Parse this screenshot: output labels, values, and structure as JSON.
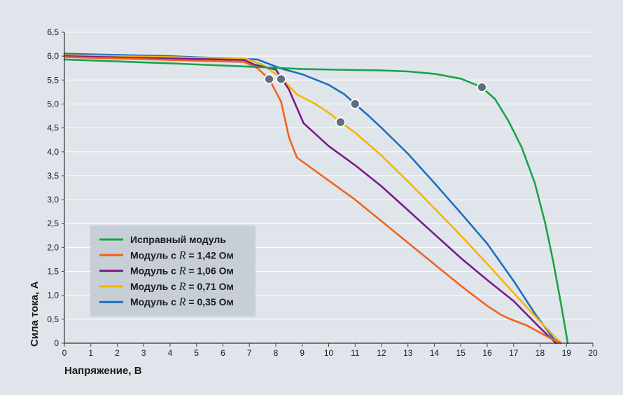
{
  "chart_data": {
    "type": "line",
    "xlabel": "Напряжение, В",
    "ylabel": "Сила тока, А",
    "xlim": [
      0,
      20
    ],
    "ylim": [
      0,
      6.5
    ],
    "x_ticks": [
      "0",
      "1",
      "2",
      "3",
      "4",
      "5",
      "6",
      "7",
      "8",
      "9",
      "10",
      "11",
      "12",
      "13",
      "14",
      "15",
      "16",
      "17",
      "18",
      "19",
      "20"
    ],
    "y_ticks": [
      "0",
      "0,5",
      "1,0",
      "1,5",
      "2,0",
      "2,5",
      "3,0",
      "3,5",
      "4,0",
      "4,5",
      "5,0",
      "5,5",
      "6,0",
      "6,5"
    ],
    "grid": "horizontal",
    "legend_position": "bottom-left",
    "legend": [
      {
        "prefix": "Исправный модуль",
        "r": "",
        "suffix": "",
        "color": "#1aa34a"
      },
      {
        "prefix": "Модуль с ",
        "r": "R",
        "suffix": " = 1,42 Ом",
        "color": "#f0641e"
      },
      {
        "prefix": "Модуль с ",
        "r": "R",
        "suffix": " = 1,06 Ом",
        "color": "#7a1a8c"
      },
      {
        "prefix": "Модуль с ",
        "r": "R",
        "suffix": " = 0,71 Ом",
        "color": "#f7b500"
      },
      {
        "prefix": "Модуль с ",
        "r": "R",
        "suffix": " = 0,35 Ом",
        "color": "#1b6fc2"
      }
    ],
    "series": [
      {
        "name": "Исправный модуль",
        "color": "#1aa34a",
        "points": [
          [
            0,
            5.93
          ],
          [
            4,
            5.85
          ],
          [
            7,
            5.78
          ],
          [
            9,
            5.73
          ],
          [
            11,
            5.71
          ],
          [
            12,
            5.7
          ],
          [
            13,
            5.68
          ],
          [
            14,
            5.63
          ],
          [
            15,
            5.53
          ],
          [
            15.8,
            5.35
          ],
          [
            16.3,
            5.1
          ],
          [
            16.8,
            4.65
          ],
          [
            17.3,
            4.1
          ],
          [
            17.8,
            3.35
          ],
          [
            18.2,
            2.5
          ],
          [
            18.5,
            1.7
          ],
          [
            18.8,
            0.8
          ],
          [
            19.05,
            0
          ]
        ]
      },
      {
        "name": "Модуль с R = 1,42 Ом",
        "color": "#f0641e",
        "points": [
          [
            0,
            5.98
          ],
          [
            4,
            5.92
          ],
          [
            6.8,
            5.88
          ],
          [
            7.3,
            5.75
          ],
          [
            7.75,
            5.52
          ],
          [
            8.2,
            5.05
          ],
          [
            8.5,
            4.3
          ],
          [
            8.8,
            3.88
          ],
          [
            10,
            3.4
          ],
          [
            11,
            3.0
          ],
          [
            12,
            2.55
          ],
          [
            13,
            2.1
          ],
          [
            14,
            1.65
          ],
          [
            15,
            1.2
          ],
          [
            16,
            0.78
          ],
          [
            16.5,
            0.6
          ],
          [
            16.8,
            0.52
          ],
          [
            17.5,
            0.37
          ],
          [
            18.5,
            0.07
          ],
          [
            18.8,
            0
          ]
        ]
      },
      {
        "name": "Модуль с R = 1,06 Ом",
        "color": "#7a1a8c",
        "points": [
          [
            0,
            6.0
          ],
          [
            4,
            5.95
          ],
          [
            6.8,
            5.92
          ],
          [
            7.2,
            5.82
          ],
          [
            8,
            5.72
          ],
          [
            8.5,
            5.3
          ],
          [
            9.05,
            4.6
          ],
          [
            10,
            4.12
          ],
          [
            11,
            3.72
          ],
          [
            12,
            3.28
          ],
          [
            13,
            2.78
          ],
          [
            14,
            2.28
          ],
          [
            15,
            1.78
          ],
          [
            16,
            1.32
          ],
          [
            17,
            0.88
          ],
          [
            17.5,
            0.6
          ],
          [
            18,
            0.32
          ],
          [
            18.6,
            0
          ]
        ]
      },
      {
        "name": "Модуль с R = 0,71 Ом",
        "color": "#f7b500",
        "points": [
          [
            0,
            6.02
          ],
          [
            4,
            5.98
          ],
          [
            6.9,
            5.94
          ],
          [
            7.5,
            5.82
          ],
          [
            8.2,
            5.55
          ],
          [
            8.8,
            5.2
          ],
          [
            9.5,
            5.0
          ],
          [
            10,
            4.82
          ],
          [
            10.45,
            4.62
          ],
          [
            11,
            4.4
          ],
          [
            12,
            3.92
          ],
          [
            13,
            3.38
          ],
          [
            14,
            2.82
          ],
          [
            15,
            2.25
          ],
          [
            16,
            1.66
          ],
          [
            17,
            1.05
          ],
          [
            18,
            0.45
          ],
          [
            18.8,
            0
          ]
        ]
      },
      {
        "name": "Модуль с R = 0,35 Ом",
        "color": "#1b6fc2",
        "points": [
          [
            0,
            6.05
          ],
          [
            4,
            6.0
          ],
          [
            7.3,
            5.93
          ],
          [
            8.2,
            5.74
          ],
          [
            9,
            5.62
          ],
          [
            10,
            5.4
          ],
          [
            10.6,
            5.2
          ],
          [
            11,
            5.0
          ],
          [
            11.5,
            4.76
          ],
          [
            12,
            4.5
          ],
          [
            13,
            3.96
          ],
          [
            14,
            3.35
          ],
          [
            15,
            2.72
          ],
          [
            16,
            2.08
          ],
          [
            17,
            1.3
          ],
          [
            17.8,
            0.62
          ],
          [
            18.5,
            0.1
          ],
          [
            18.7,
            0
          ]
        ]
      }
    ],
    "markers": [
      {
        "series": "Исправный модуль",
        "x": 15.8,
        "y": 5.35
      },
      {
        "series": "Модуль с R = 1,42 Ом",
        "x": 7.75,
        "y": 5.52
      },
      {
        "series": "Модуль с R = 1,06 Ом",
        "x": 8.2,
        "y": 5.52
      },
      {
        "series": "Модуль с R = 0,71 Ом",
        "x": 10.45,
        "y": 4.62
      },
      {
        "series": "Модуль с R = 0,35 Ом",
        "x": 11.0,
        "y": 5.0
      }
    ],
    "marker_color": "#5f6f7e"
  }
}
